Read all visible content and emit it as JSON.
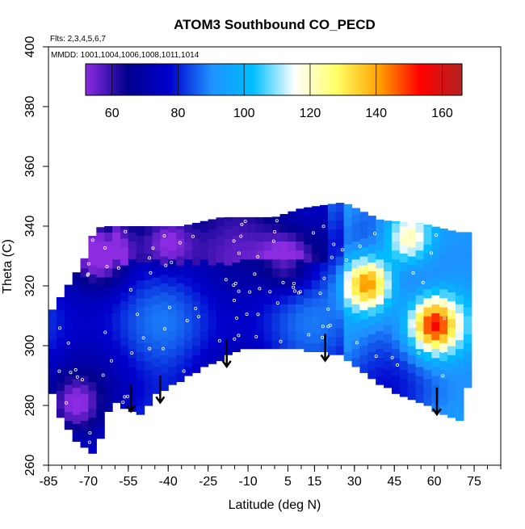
{
  "chart_data": {
    "type": "heatmap",
    "title": "ATOM3 Southbound CO_PECD",
    "subtitle_flights": "Flts: 2,3,4,5,6,7",
    "subtitle_dates": "MMDD: 1001,1004,1006,1008,1011,1014",
    "xlabel": "Latitude (deg N)",
    "ylabel": "Theta (C)",
    "xlim": [
      -85,
      85
    ],
    "ylim": [
      260,
      400
    ],
    "x_ticks": [
      -85,
      -70,
      -55,
      -40,
      -25,
      -10,
      5,
      15,
      30,
      45,
      60,
      75
    ],
    "y_ticks": [
      260,
      280,
      300,
      320,
      340,
      360,
      380,
      400
    ],
    "colorbar": {
      "range": [
        52,
        166
      ],
      "ticks": [
        60,
        80,
        100,
        120,
        140,
        160
      ],
      "palette": [
        "#8b2be2",
        "#00008b",
        "#0000cd",
        "#1e90ff",
        "#00bfff",
        "#ffffff",
        "#ffff66",
        "#ffa500",
        "#ff0000",
        "#b22222"
      ]
    },
    "field_region": {
      "upper_boundary": [
        [
          -72,
          328
        ],
        [
          -68,
          338
        ],
        [
          -65,
          340
        ],
        [
          -35,
          340
        ],
        [
          -20,
          343
        ],
        [
          0,
          343
        ],
        [
          10,
          346
        ],
        [
          26,
          348
        ],
        [
          40,
          342
        ],
        [
          55,
          341
        ],
        [
          69,
          338
        ]
      ],
      "lower_boundary": [
        [
          -85,
          288
        ],
        [
          -80,
          275
        ],
        [
          -73,
          267
        ],
        [
          -67,
          264
        ],
        [
          -64,
          275
        ],
        [
          -61,
          282
        ],
        [
          -55,
          279
        ],
        [
          -50,
          277
        ],
        [
          -45,
          284
        ],
        [
          -35,
          289
        ],
        [
          -25,
          294
        ],
        [
          -15,
          298
        ],
        [
          -10,
          300
        ],
        [
          10,
          299
        ],
        [
          20,
          298
        ],
        [
          25,
          297
        ],
        [
          30,
          294
        ],
        [
          40,
          287
        ],
        [
          50,
          283
        ],
        [
          60,
          279
        ],
        [
          70,
          275
        ],
        [
          71,
          286
        ]
      ]
    },
    "hotspots": [
      {
        "lat": 60,
        "theta": 307,
        "value": 140
      },
      {
        "lat": 35,
        "theta": 321,
        "value": 140
      },
      {
        "lat": 50,
        "theta": 336,
        "value": 120
      },
      {
        "lat": -65,
        "theta": 331,
        "value": 55
      },
      {
        "lat": -75,
        "theta": 280,
        "value": 60
      },
      {
        "lat": -40,
        "theta": 335,
        "value": 62
      },
      {
        "lat": 5,
        "theta": 328,
        "value": 60
      }
    ],
    "arrows_lat": [
      -54,
      -43,
      -18,
      19,
      61
    ],
    "arrows_theta": [
      [
        287,
        278
      ],
      [
        290,
        281
      ],
      [
        302,
        293
      ],
      [
        304,
        295
      ],
      [
        286,
        277
      ]
    ]
  }
}
